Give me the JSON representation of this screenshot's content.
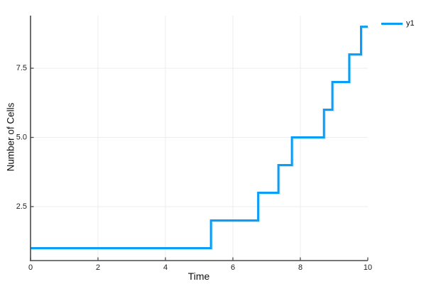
{
  "figure": {
    "background": "#ffffff"
  },
  "chart_data": {
    "type": "line",
    "subtype": "step",
    "title": "",
    "xlabel": "Time",
    "ylabel": "Number of Cells",
    "xlim": [
      0,
      10
    ],
    "ylim": [
      0.55,
      9.4
    ],
    "xticks": {
      "values": [
        0,
        2,
        4,
        6,
        8,
        10
      ],
      "labels": [
        "0",
        "2",
        "4",
        "6",
        "8",
        "10"
      ]
    },
    "yticks": {
      "values": [
        2.5,
        5.0,
        7.5
      ],
      "labels": [
        "2.5",
        "5.0",
        "7.5"
      ]
    },
    "grid": {
      "x_values": [
        2,
        4,
        6,
        8
      ],
      "y_values": [
        2.5,
        5.0,
        7.5
      ],
      "color": "#ededed"
    },
    "legend": {
      "position": "outer-top-right",
      "entries": [
        {
          "label": "y1",
          "color": "#0d9df5"
        }
      ]
    },
    "series": [
      {
        "name": "y1",
        "color": "#0d9df5",
        "halo_color": "#a6d9f9",
        "line_width": 3,
        "step_points": [
          [
            0,
            1
          ],
          [
            5.35,
            1
          ],
          [
            5.35,
            2
          ],
          [
            6.75,
            2
          ],
          [
            6.75,
            3
          ],
          [
            7.35,
            3
          ],
          [
            7.35,
            4
          ],
          [
            7.75,
            4
          ],
          [
            7.75,
            5
          ],
          [
            8.7,
            5
          ],
          [
            8.7,
            6
          ],
          [
            8.95,
            6
          ],
          [
            8.95,
            7
          ],
          [
            9.45,
            7
          ],
          [
            9.45,
            8
          ],
          [
            9.8,
            8
          ],
          [
            9.8,
            9
          ],
          [
            10,
            9
          ]
        ]
      }
    ],
    "axis_color": "#4a4a4a",
    "tick_text_color": "#1e1e1e"
  }
}
